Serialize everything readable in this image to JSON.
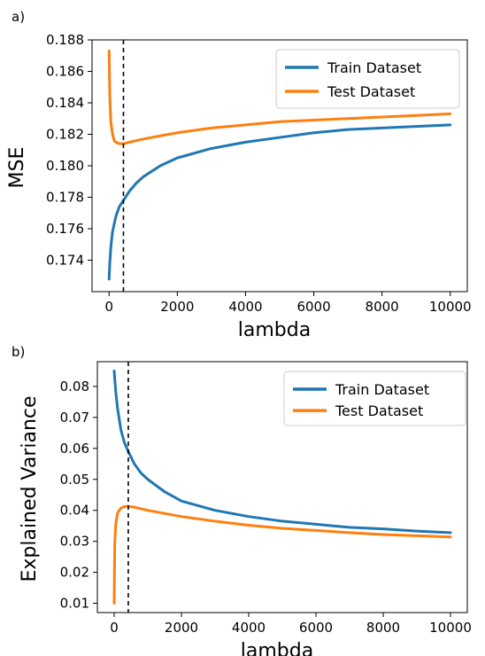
{
  "chart_data": [
    {
      "panel_label": "a)",
      "type": "line",
      "xlabel": "lambda",
      "ylabel": "MSE",
      "xlim": [
        -500,
        10500
      ],
      "ylim": [
        0.172,
        0.188
      ],
      "xticks": [
        0,
        2000,
        4000,
        6000,
        8000,
        10000
      ],
      "yticks": [
        0.174,
        0.176,
        0.178,
        0.18,
        0.182,
        0.184,
        0.186,
        0.188
      ],
      "ytick_labels": [
        "0.174",
        "0.176",
        "0.178",
        "0.180",
        "0.182",
        "0.184",
        "0.186",
        "0.188"
      ],
      "legend_position": "top-right",
      "vline_x": 420,
      "grid": false,
      "series": [
        {
          "name": "Train Dataset",
          "color": "#1f77b4",
          "x": [
            0,
            20,
            50,
            100,
            200,
            300,
            420,
            600,
            800,
            1000,
            1500,
            2000,
            3000,
            4000,
            5000,
            6000,
            7000,
            8000,
            9000,
            10000
          ],
          "y": [
            0.1728,
            0.1738,
            0.1748,
            0.1758,
            0.1768,
            0.1774,
            0.1778,
            0.1784,
            0.1789,
            0.1793,
            0.18,
            0.1805,
            0.1811,
            0.1815,
            0.1818,
            0.1821,
            0.1823,
            0.1824,
            0.1825,
            0.1826
          ]
        },
        {
          "name": "Test Dataset",
          "color": "#ff7f0e",
          "x": [
            0,
            20,
            50,
            100,
            150,
            200,
            300,
            420,
            600,
            800,
            1000,
            1500,
            2000,
            3000,
            4000,
            5000,
            6000,
            7000,
            8000,
            9000,
            10000
          ],
          "y": [
            0.1873,
            0.1845,
            0.1828,
            0.182,
            0.1816,
            0.1815,
            0.1814,
            0.1814,
            0.1815,
            0.1816,
            0.1817,
            0.1819,
            0.1821,
            0.1824,
            0.1826,
            0.1828,
            0.1829,
            0.183,
            0.1831,
            0.1832,
            0.1833
          ]
        }
      ]
    },
    {
      "panel_label": "b)",
      "type": "line",
      "xlabel": "lambda",
      "ylabel": "Explained Variance",
      "xlim": [
        -500,
        10500
      ],
      "ylim": [
        0.007,
        0.088
      ],
      "xticks": [
        0,
        2000,
        4000,
        6000,
        8000,
        10000
      ],
      "yticks": [
        0.01,
        0.02,
        0.03,
        0.04,
        0.05,
        0.06,
        0.07,
        0.08
      ],
      "ytick_labels": [
        "0.01",
        "0.02",
        "0.03",
        "0.04",
        "0.05",
        "0.06",
        "0.07",
        "0.08"
      ],
      "legend_position": "top-right",
      "vline_x": 420,
      "grid": false,
      "series": [
        {
          "name": "Train Dataset",
          "color": "#1f77b4",
          "x": [
            0,
            20,
            50,
            100,
            200,
            300,
            420,
            600,
            800,
            1000,
            1500,
            2000,
            3000,
            4000,
            5000,
            6000,
            7000,
            8000,
            9000,
            10000
          ],
          "y": [
            0.085,
            0.082,
            0.078,
            0.073,
            0.066,
            0.062,
            0.059,
            0.055,
            0.052,
            0.05,
            0.046,
            0.043,
            0.04,
            0.038,
            0.0365,
            0.0355,
            0.0345,
            0.034,
            0.0333,
            0.0328
          ]
        },
        {
          "name": "Test Dataset",
          "color": "#ff7f0e",
          "x": [
            0,
            10,
            20,
            50,
            100,
            150,
            200,
            300,
            420,
            600,
            800,
            1000,
            1500,
            2000,
            3000,
            4000,
            5000,
            6000,
            7000,
            8000,
            9000,
            10000
          ],
          "y": [
            0.01,
            0.022,
            0.03,
            0.036,
            0.039,
            0.04,
            0.0407,
            0.0412,
            0.0413,
            0.041,
            0.0405,
            0.04,
            0.039,
            0.038,
            0.0365,
            0.0352,
            0.0342,
            0.0335,
            0.0328,
            0.0322,
            0.0318,
            0.0314
          ]
        }
      ]
    }
  ]
}
